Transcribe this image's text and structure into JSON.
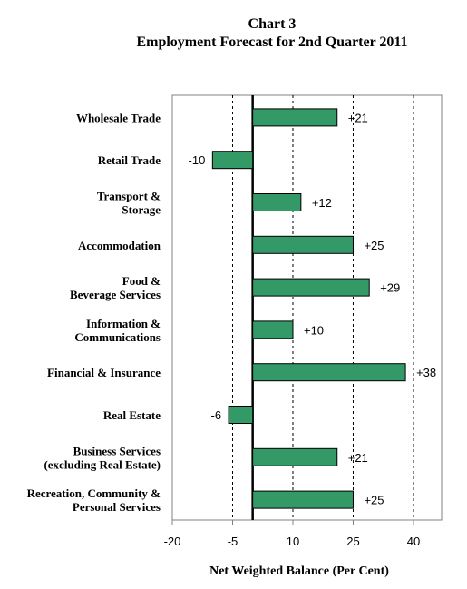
{
  "chart_data": {
    "type": "bar",
    "orientation": "horizontal",
    "title_line1": "Chart 3",
    "title_line2": "Employment Forecast for 2nd Quarter 2011",
    "xlabel": "Net Weighted Balance (Per Cent)",
    "ylabel": "",
    "xlim": [
      -20,
      47
    ],
    "xticks": [
      -20,
      -5,
      10,
      25,
      40
    ],
    "xtick_labels": [
      "-20",
      "-5",
      "10",
      "25",
      "40"
    ],
    "grid": "vertical dashed",
    "categories": [
      [
        "Wholesale Trade"
      ],
      [
        "Retail Trade"
      ],
      [
        "Transport &",
        "Storage"
      ],
      [
        "Accommodation"
      ],
      [
        "Food &",
        "Beverage Services"
      ],
      [
        "Information &",
        "Communications"
      ],
      [
        "Financial & Insurance"
      ],
      [
        "Real Estate"
      ],
      [
        "Business Services",
        "(excluding Real Estate)"
      ],
      [
        "Recreation, Community &",
        "Personal Services"
      ]
    ],
    "values": [
      21,
      -10,
      12,
      25,
      29,
      10,
      38,
      -6,
      21,
      25
    ],
    "value_labels": [
      "+21",
      "-10",
      "+12",
      "+25",
      "+29",
      "+10",
      "+38",
      "-6",
      "+21",
      "+25"
    ],
    "bar_color": "#339966",
    "zero_line_color": "#000000"
  }
}
